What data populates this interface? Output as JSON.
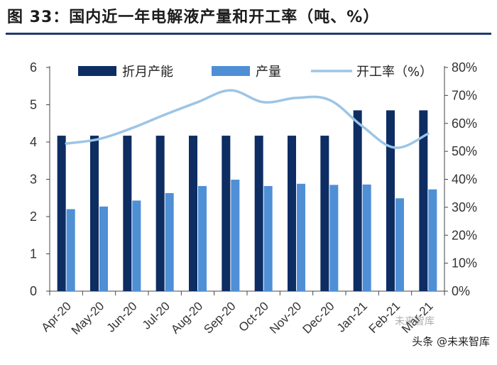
{
  "title": "图 33：国内近一年电解液产量和开工率（吨、%）",
  "watermark": {
    "line1": "未来智库",
    "line2": "头条 @未来智库"
  },
  "colors": {
    "capacity": "#0d2d63",
    "output": "#4f8fd6",
    "rate": "#9cc5e6"
  },
  "chart_data": {
    "type": "bar+line",
    "categories": [
      "Apr-20",
      "May-20",
      "Jun-20",
      "Jul-20",
      "Aug-20",
      "Sep-20",
      "Oct-20",
      "Nov-20",
      "Dec-20",
      "Jan-21",
      "Feb-21",
      "Mar-21"
    ],
    "series": [
      {
        "name": "折月产能",
        "type": "bar",
        "axis": "left",
        "values": [
          4.17,
          4.17,
          4.17,
          4.17,
          4.17,
          4.17,
          4.17,
          4.17,
          4.17,
          4.85,
          4.85,
          4.85
        ]
      },
      {
        "name": "产量",
        "type": "bar",
        "axis": "left",
        "values": [
          2.2,
          2.27,
          2.43,
          2.63,
          2.82,
          2.99,
          2.82,
          2.88,
          2.85,
          2.86,
          2.49,
          2.73
        ]
      },
      {
        "name": "开工率（%）",
        "type": "line",
        "axis": "right",
        "values": [
          52.8,
          54.4,
          58.3,
          63.1,
          67.6,
          71.8,
          67.6,
          69.1,
          68.4,
          59.0,
          51.3,
          56.3
        ]
      }
    ],
    "ylim_left": [
      0,
      6
    ],
    "yticks_left": [
      "0",
      "1",
      "2",
      "3",
      "4",
      "5",
      "6"
    ],
    "ylim_right": [
      0,
      80
    ],
    "yticks_right": [
      "0%",
      "10%",
      "20%",
      "30%",
      "40%",
      "50%",
      "60%",
      "70%",
      "80%"
    ],
    "legend_position": "top"
  }
}
